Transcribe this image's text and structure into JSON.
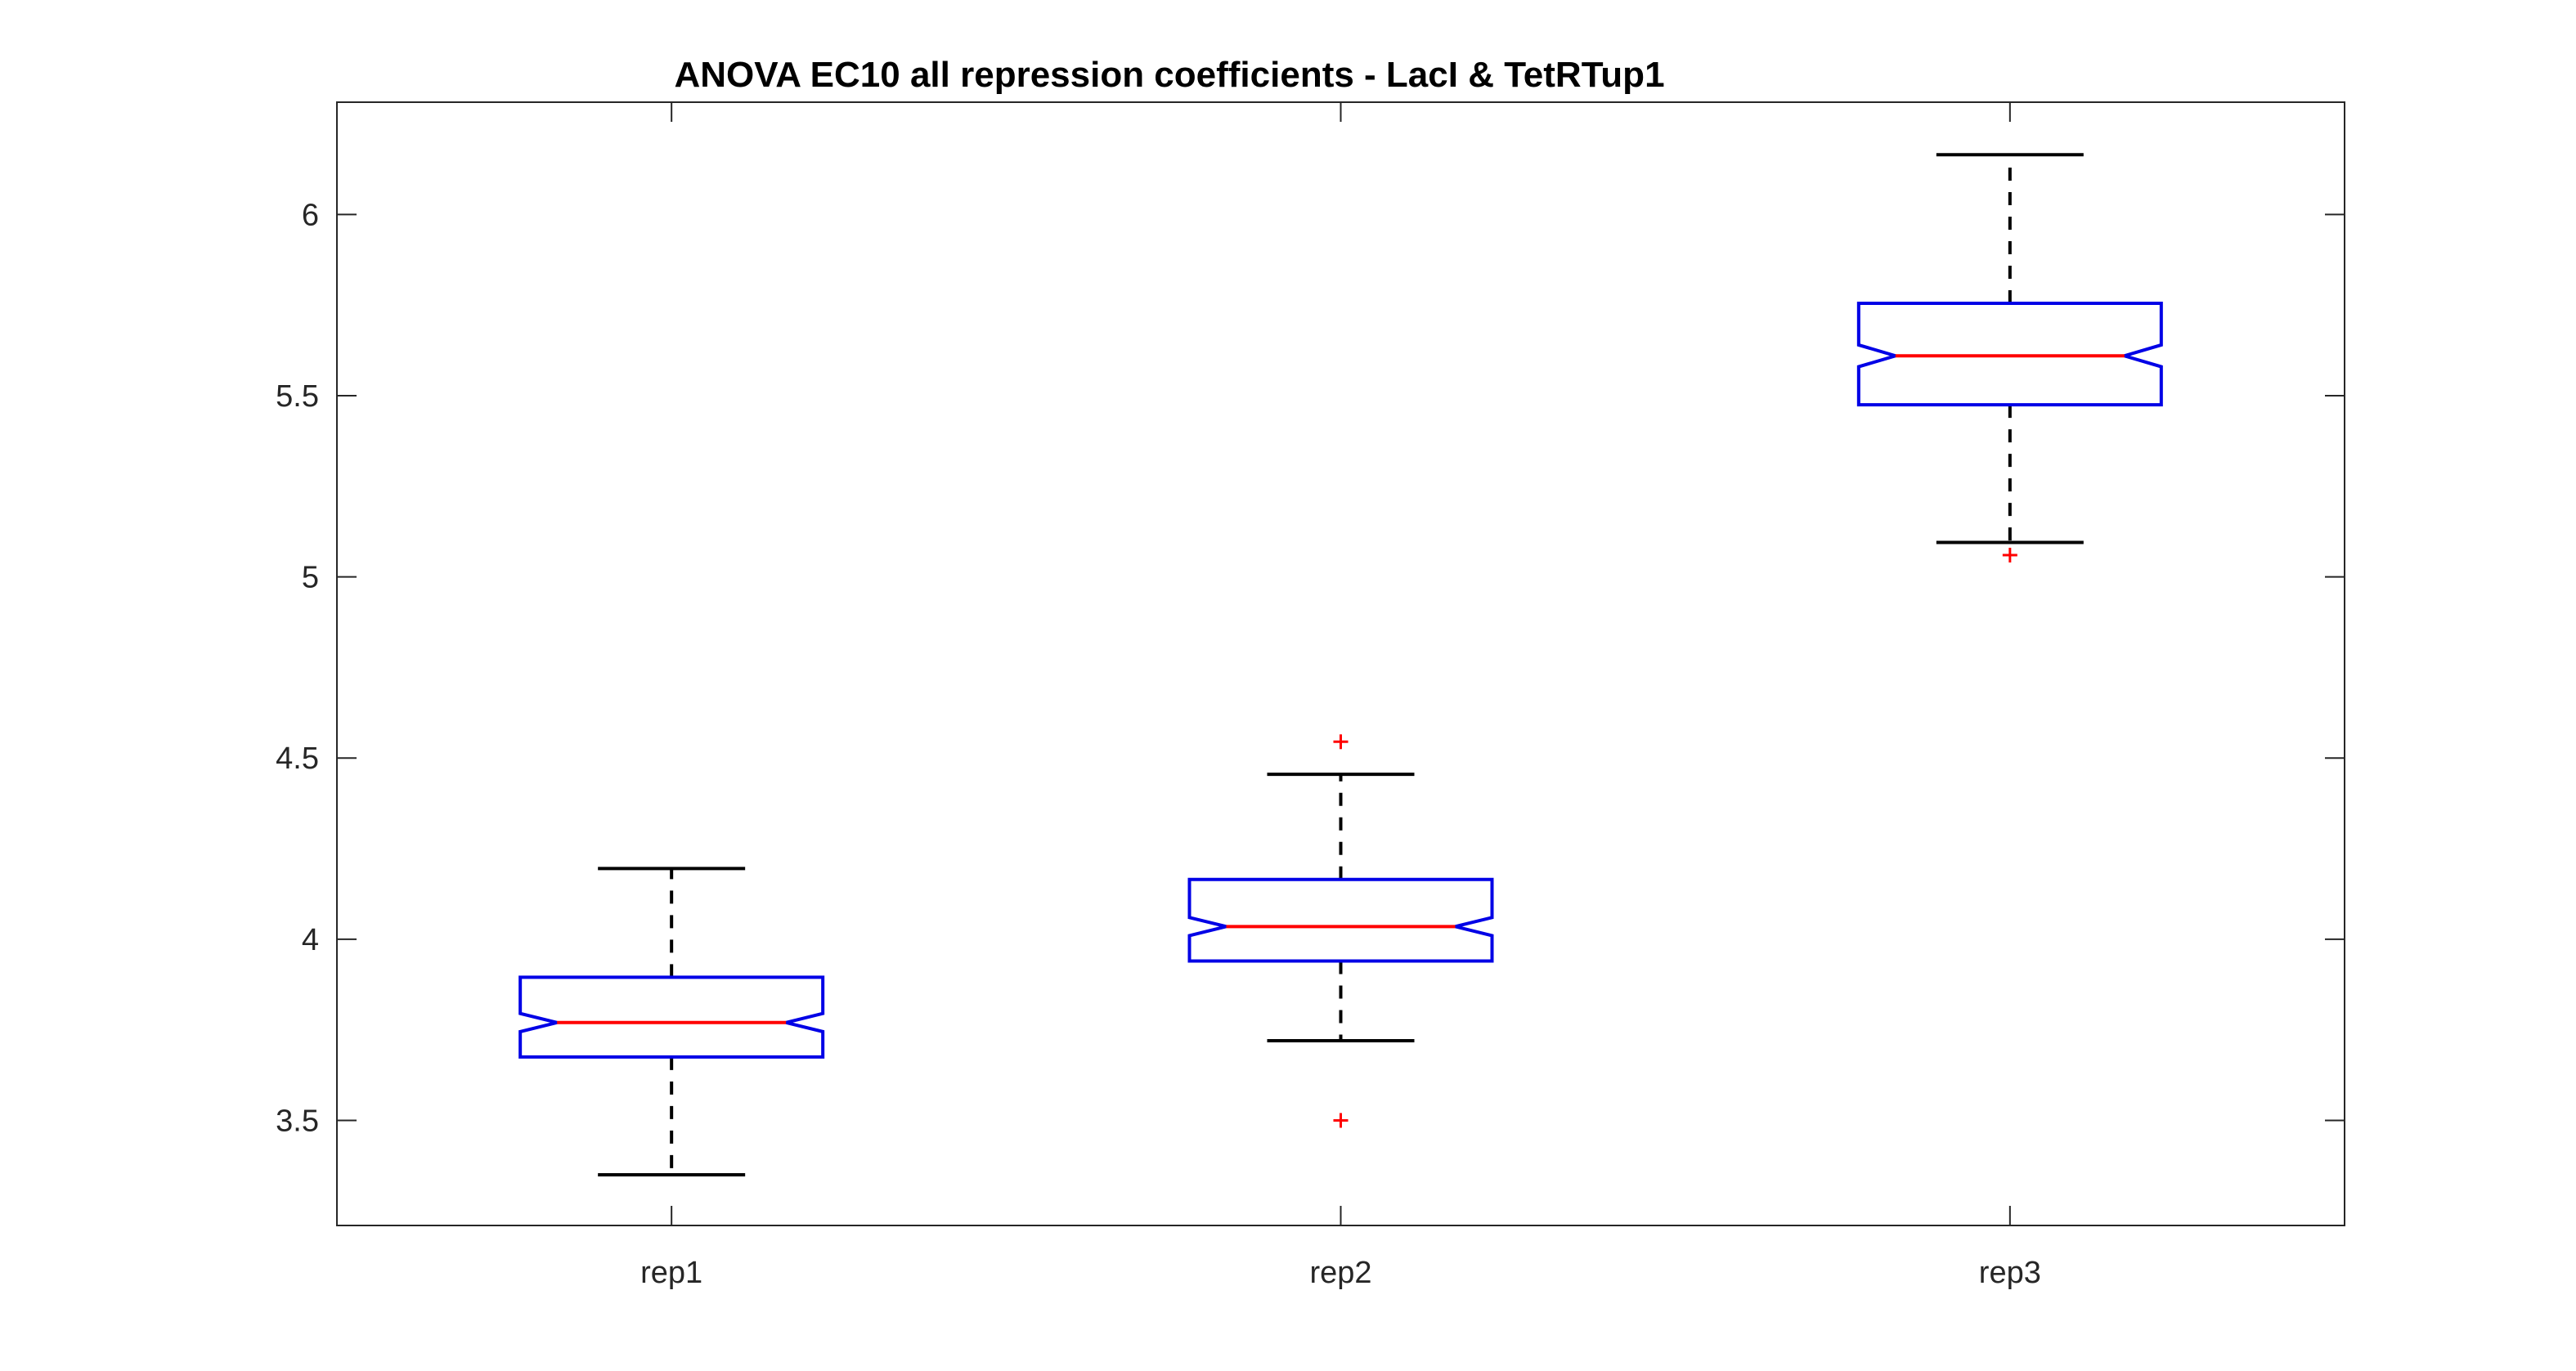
{
  "chart_data": {
    "type": "box",
    "title": "ANOVA  EC10 all repression coefficients - LacI & TetRTup1",
    "xlabel": "",
    "ylabel": "",
    "ylim": [
      3.21,
      6.31
    ],
    "yticks": [
      3.5,
      4,
      4.5,
      5,
      5.5,
      6
    ],
    "ytick_labels": [
      "3.5",
      "4",
      "4.5",
      "5",
      "5.5",
      "6"
    ],
    "grid": false,
    "notched": true,
    "categories": [
      "rep1",
      "rep2",
      "rep3"
    ],
    "boxes": [
      {
        "label": "rep1",
        "whisker_low": 3.35,
        "q1": 3.675,
        "notch_low": 3.745,
        "median": 3.77,
        "notch_high": 3.795,
        "q3": 3.895,
        "whisker_high": 4.195,
        "outliers": []
      },
      {
        "label": "rep2",
        "whisker_low": 3.72,
        "q1": 3.94,
        "notch_low": 4.01,
        "median": 4.035,
        "notch_high": 4.06,
        "q3": 4.165,
        "whisker_high": 4.455,
        "outliers": [
          3.5,
          4.545
        ]
      },
      {
        "label": "rep3",
        "whisker_low": 5.095,
        "q1": 5.475,
        "notch_low": 5.58,
        "median": 5.61,
        "notch_high": 5.64,
        "q3": 5.755,
        "whisker_high": 6.165,
        "outliers": [
          5.06
        ]
      }
    ],
    "colors": {
      "box": "#0000e6",
      "median": "#ff0000",
      "whisker": "#000000",
      "outlier": "#ff0000",
      "axes": "#262626"
    }
  }
}
